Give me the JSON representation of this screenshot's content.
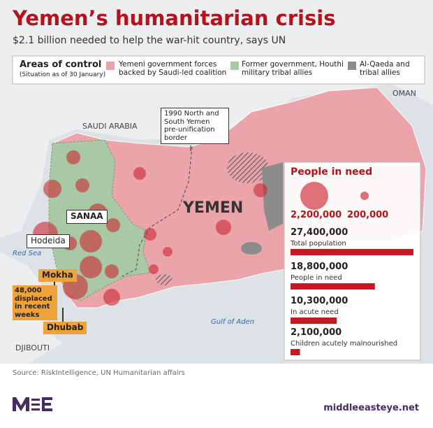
{
  "header": {
    "title": "Yemen’s humanitarian crisis",
    "subtitle": "$2.1 billion needed to help the war-hit country, says UN"
  },
  "legend": {
    "title": "Areas of control",
    "note": "(Situation as of 30 January)",
    "items": [
      "Yemeni government forces backed by Saudi-led coalition",
      "Former government, Houthi military tribal allies",
      "Al-Qaeda and tribal allies"
    ]
  },
  "map_labels": {
    "oman": "OMAN",
    "saudi_arabia": "SAUDI ARABIA",
    "yemen": "YEMEN",
    "red_sea": "Red Sea",
    "gulf_of_aden": "Gulf of Aden",
    "djibouti": "DJIBOUTI",
    "sanaa": "SANAA",
    "hodeida": "Hodeida",
    "mokha": "Mokha",
    "dhubab": "Dhubab",
    "displaced": "48,000 displaced in recent weeks",
    "border": "1990 North and South Yemen pre-unification border"
  },
  "panel": {
    "title": "People in need",
    "size_legend": [
      {
        "value": 2200000,
        "label": "2,200,000"
      },
      {
        "value": 200000,
        "label": "200,000"
      }
    ],
    "stats": [
      {
        "value": 27400000,
        "label": "27,400,000",
        "caption": "Total population"
      },
      {
        "value": 18800000,
        "label": "18,800,000",
        "caption": "People in need"
      },
      {
        "value": 10300000,
        "label": "10,300,000",
        "caption": "In acute need"
      },
      {
        "value": 2100000,
        "label": "2,100,000",
        "caption": "Children acutely malnourished"
      }
    ]
  },
  "footer": {
    "source": "Source: RiskIntelligence, UN Humanitarian affairs",
    "url": "middleeasteye.net"
  }
}
